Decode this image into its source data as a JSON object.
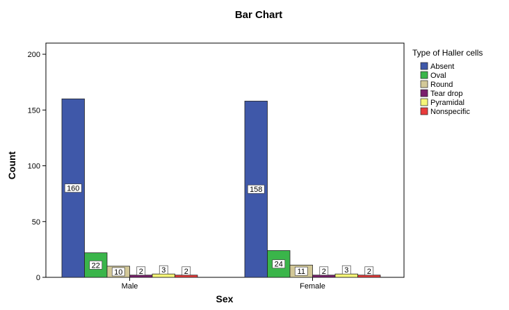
{
  "chart_data": {
    "type": "bar",
    "title": "Bar Chart",
    "xlabel": "Sex",
    "ylabel": "Count",
    "ylim": [
      0,
      210
    ],
    "yticks": [
      0,
      50,
      100,
      150,
      200
    ],
    "grid": false,
    "legend_position": "right",
    "legend_title": "Type of Haller cells",
    "categories": [
      "Male",
      "Female"
    ],
    "series": [
      {
        "name": "Absent",
        "color": "#3f58a9",
        "values": [
          160,
          158
        ]
      },
      {
        "name": "Oval",
        "color": "#3ab54a",
        "values": [
          22,
          24
        ]
      },
      {
        "name": "Round",
        "color": "#d2c898",
        "values": [
          10,
          11
        ]
      },
      {
        "name": "Tear drop",
        "color": "#7a1f6d",
        "values": [
          2,
          2
        ]
      },
      {
        "name": "Pyramidal",
        "color": "#f5f578",
        "values": [
          3,
          3
        ]
      },
      {
        "name": "Nonspecific",
        "color": "#e83b3b",
        "values": [
          2,
          2
        ]
      }
    ]
  }
}
